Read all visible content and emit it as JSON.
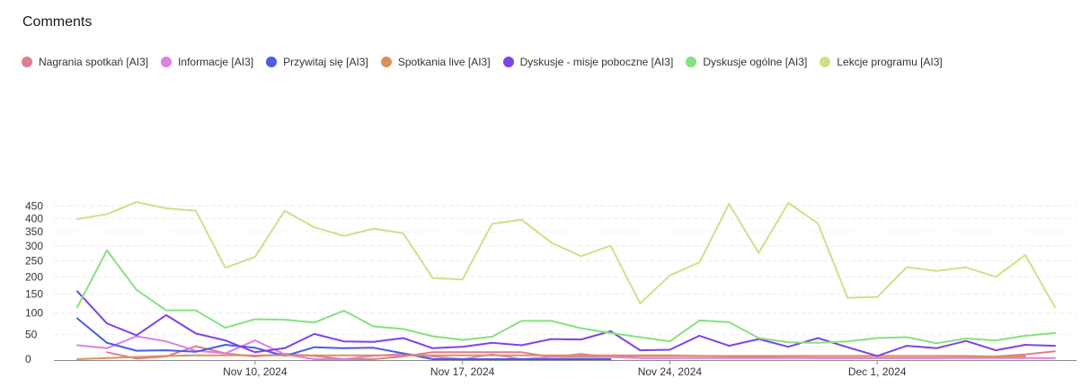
{
  "chart_data": {
    "type": "line",
    "title": "Comments",
    "xlabel": "",
    "ylabel": "",
    "y_ticks": [
      "450",
      "400",
      "350",
      "300",
      "250",
      "200",
      "150",
      "100",
      "50",
      "0"
    ],
    "x_ticks": [
      {
        "label": "Nov 10, 2024",
        "index": 6
      },
      {
        "label": "Nov 17, 2024",
        "index": 13
      },
      {
        "label": "Nov 24, 2024",
        "index": 20
      },
      {
        "label": "Dec 1, 2024",
        "index": 27
      }
    ],
    "n_points": 34,
    "series": [
      {
        "name": "Nagrania spotkań [AI3]",
        "color": "#dd7d93",
        "values": [
          null,
          13,
          1,
          5,
          25,
          11,
          5,
          10,
          6,
          0,
          0,
          5,
          13,
          13,
          13,
          13,
          4,
          4,
          4,
          6,
          6,
          6,
          5,
          4,
          3,
          2,
          2,
          2,
          2,
          2,
          3,
          5,
          9,
          15
        ]
      },
      {
        "name": "Informacje [AI3]",
        "color": "#dd80e0",
        "values": [
          27,
          21,
          46,
          35,
          16,
          11,
          37,
          9,
          0,
          0,
          6,
          10,
          5,
          0,
          9,
          0,
          4,
          10,
          4,
          2,
          2,
          2,
          2,
          2,
          2,
          2,
          2,
          2,
          2,
          2,
          2,
          2,
          2,
          2
        ]
      },
      {
        "name": "Przywitaj się [AI3]",
        "color": "#4a5be6",
        "values": [
          87,
          32,
          16,
          17,
          14,
          28,
          22,
          6,
          23,
          21,
          22,
          11,
          0,
          0,
          0,
          0,
          0,
          0,
          0,
          null,
          null,
          null,
          null,
          null,
          null,
          null,
          null,
          null,
          null,
          null,
          null,
          null,
          null,
          null
        ]
      },
      {
        "name": "Spotkania live [AI3]",
        "color": "#dd915a",
        "values": [
          0,
          2,
          4,
          6,
          7,
          7,
          7,
          7,
          7,
          7,
          7,
          7,
          7,
          7,
          7,
          7,
          7,
          7,
          7,
          7,
          7,
          6,
          6,
          6,
          6,
          6,
          6,
          6,
          6,
          6,
          6,
          5,
          5,
          null
        ]
      },
      {
        "name": "Dyskusje - misje poboczne [AI3]",
        "color": "#7d44e8",
        "values": [
          158,
          75,
          48,
          95,
          52,
          37,
          13,
          21,
          51,
          35,
          34,
          42,
          21,
          24,
          32,
          27,
          40,
          39,
          57,
          17,
          18,
          47,
          26,
          40,
          24,
          42,
          23,
          6,
          26,
          21,
          36,
          17,
          28,
          26
        ]
      },
      {
        "name": "Dyskusje ogólne [AI3]",
        "color": "#86e082",
        "values": [
          115,
          285,
          162,
          107,
          107,
          65,
          85,
          84,
          77,
          106,
          68,
          62,
          46,
          38,
          45,
          81,
          81,
          64,
          53,
          44,
          35,
          82,
          78,
          42,
          33,
          32,
          35,
          42,
          44,
          31,
          41,
          37,
          47,
          53
        ]
      },
      {
        "name": "Lekcje programu [AI3]",
        "color": "#cfe088",
        "values": [
          398,
          417,
          465,
          440,
          430,
          228,
          263,
          430,
          367,
          335,
          362,
          345,
          196,
          192,
          380,
          395,
          312,
          265,
          301,
          125,
          204,
          245,
          458,
          276,
          462,
          382,
          140,
          142,
          230,
          218,
          229,
          200,
          269,
          115
        ]
      }
    ]
  }
}
